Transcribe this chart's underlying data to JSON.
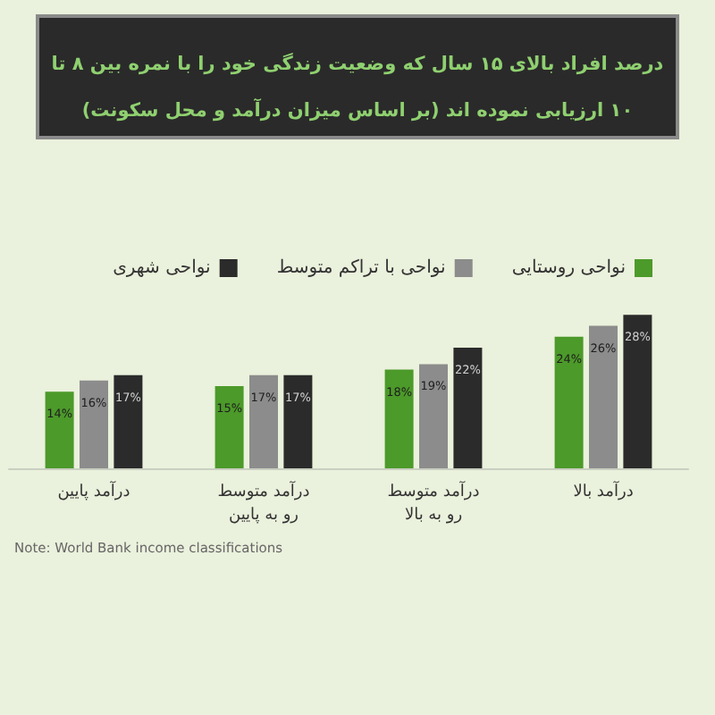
{
  "chart_data": {
    "type": "bar",
    "title": "درصد افراد بالای ۱۵ سال که وضعیت زندگی خود را با نمره بین ۸ تا ۱۰ ارزیابی نموده اند (بر اساس میزان درآمد و محل سکونت)",
    "categories": [
      "درآمد پایین",
      "درآمد متوسط رو به پایین",
      "درآمد متوسط رو به بالا",
      "درآمد بالا"
    ],
    "series": [
      {
        "name": "نواحی روستایی",
        "color": "#4c9a2a",
        "values": [
          14,
          15,
          18,
          24
        ],
        "value_labels": [
          "14%",
          "15%",
          "18%",
          "24%"
        ]
      },
      {
        "name": "نواحی با تراکم متوسط",
        "color": "#8c8c8c",
        "values": [
          16,
          17,
          19,
          26
        ],
        "value_labels": [
          "16%",
          "17%",
          "19%",
          "26%"
        ]
      },
      {
        "name": "نواحی شهری",
        "color": "#2b2b2b",
        "values": [
          17,
          17,
          22,
          28
        ],
        "value_labels": [
          "17%",
          "17%",
          "22%",
          "28%"
        ]
      }
    ],
    "legend": "top right",
    "grid": false,
    "tick_labels": "x",
    "annotations": [
      "Note: World Bank income classifications"
    ]
  }
}
